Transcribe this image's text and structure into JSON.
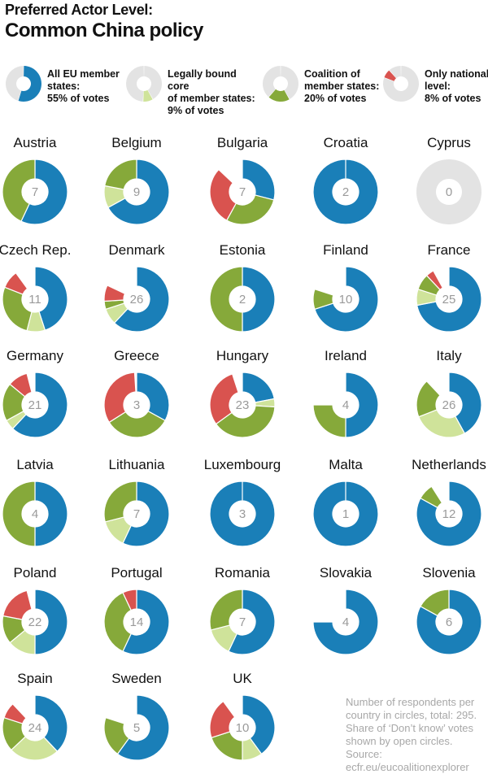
{
  "title_line1": "Preferred Actor Level:",
  "title_line2": "Common China policy",
  "colors": {
    "all_eu": "#1a7fb8",
    "core": "#cfe39a",
    "coalition": "#86a93a",
    "national": "#d9534f",
    "empty": "#e3e3e3"
  },
  "legend": [
    {
      "key": "all_eu",
      "text": "All EU member\nstates:\n55% of votes"
    },
    {
      "key": "core",
      "text": "Legally bound core\nof member states:\n9% of votes"
    },
    {
      "key": "coalition",
      "text": "Coalition of\nmember states:\n20% of votes"
    },
    {
      "key": "national",
      "text": "Only national\nlevel:\n8% of votes"
    }
  ],
  "chart_data": {
    "type": "pie",
    "subtype": "donut-small-multiples",
    "title": "Preferred Actor Level: Common China policy",
    "segment_order": [
      "All EU member states",
      "Legally bound core of member states",
      "Coalition of member states",
      "Only national level"
    ],
    "legend_share": [
      55,
      9,
      20,
      8
    ],
    "countries": [
      {
        "name": "Austria",
        "respondents": 7,
        "shares": [
          0.57,
          0,
          0.43,
          0
        ]
      },
      {
        "name": "Belgium",
        "respondents": 9,
        "shares": [
          0.67,
          0.11,
          0.22,
          0
        ]
      },
      {
        "name": "Bulgaria",
        "respondents": 7,
        "shares": [
          0.29,
          0,
          0.29,
          0.29
        ]
      },
      {
        "name": "Croatia",
        "respondents": 2,
        "shares": [
          1,
          0,
          0,
          0
        ]
      },
      {
        "name": "Cyprus",
        "respondents": 0,
        "shares": [
          0,
          0,
          0,
          0
        ]
      },
      {
        "name": "Czech Rep.",
        "respondents": 11,
        "shares": [
          0.45,
          0.09,
          0.27,
          0.09
        ]
      },
      {
        "name": "Denmark",
        "respondents": 26,
        "shares": [
          0.62,
          0.08,
          0.04,
          0.08
        ]
      },
      {
        "name": "Estonia",
        "respondents": 2,
        "shares": [
          0.5,
          0,
          0.5,
          0
        ]
      },
      {
        "name": "Finland",
        "respondents": 10,
        "shares": [
          0.7,
          0,
          0.1,
          0
        ]
      },
      {
        "name": "France",
        "respondents": 25,
        "shares": [
          0.72,
          0.08,
          0.08,
          0.04
        ]
      },
      {
        "name": "Germany",
        "respondents": 21,
        "shares": [
          0.62,
          0.05,
          0.19,
          0.1
        ]
      },
      {
        "name": "Greece",
        "respondents": 3,
        "shares": [
          0.33,
          0,
          0.33,
          0.33
        ]
      },
      {
        "name": "Hungary",
        "respondents": 23,
        "shares": [
          0.22,
          0.04,
          0.39,
          0.3
        ]
      },
      {
        "name": "Ireland",
        "respondents": 4,
        "shares": [
          0.5,
          0,
          0.25,
          0
        ]
      },
      {
        "name": "Italy",
        "respondents": 26,
        "shares": [
          0.42,
          0.27,
          0.19,
          0
        ]
      },
      {
        "name": "Latvia",
        "respondents": 4,
        "shares": [
          0.5,
          0,
          0.5,
          0
        ]
      },
      {
        "name": "Lithuania",
        "respondents": 7,
        "shares": [
          0.57,
          0.14,
          0.29,
          0
        ]
      },
      {
        "name": "Luxembourg",
        "respondents": 3,
        "shares": [
          1,
          0,
          0,
          0
        ]
      },
      {
        "name": "Malta",
        "respondents": 1,
        "shares": [
          1,
          0,
          0,
          0
        ]
      },
      {
        "name": "Netherlands",
        "respondents": 12,
        "shares": [
          0.83,
          0,
          0.08,
          0
        ]
      },
      {
        "name": "Poland",
        "respondents": 22,
        "shares": [
          0.5,
          0.14,
          0.14,
          0.18
        ]
      },
      {
        "name": "Portugal",
        "respondents": 14,
        "shares": [
          0.57,
          0,
          0.36,
          0.07
        ]
      },
      {
        "name": "Romania",
        "respondents": 7,
        "shares": [
          0.57,
          0.14,
          0.29,
          0
        ]
      },
      {
        "name": "Slovakia",
        "respondents": 4,
        "shares": [
          0.75,
          0,
          0,
          0
        ]
      },
      {
        "name": "Slovenia",
        "respondents": 6,
        "shares": [
          0.83,
          0,
          0.17,
          0
        ]
      },
      {
        "name": "Spain",
        "respondents": 24,
        "shares": [
          0.38,
          0.25,
          0.17,
          0.08
        ]
      },
      {
        "name": "Sweden",
        "respondents": 5,
        "shares": [
          0.6,
          0,
          0.2,
          0
        ]
      },
      {
        "name": "UK",
        "respondents": 10,
        "shares": [
          0.4,
          0.1,
          0.2,
          0.2
        ]
      }
    ]
  },
  "footnote": "Number of respondents per country in circles, total: 295. Share of ‘Don’t know’ votes shown by open circles. Source: ecfr.eu/eucoalitionexplorer"
}
